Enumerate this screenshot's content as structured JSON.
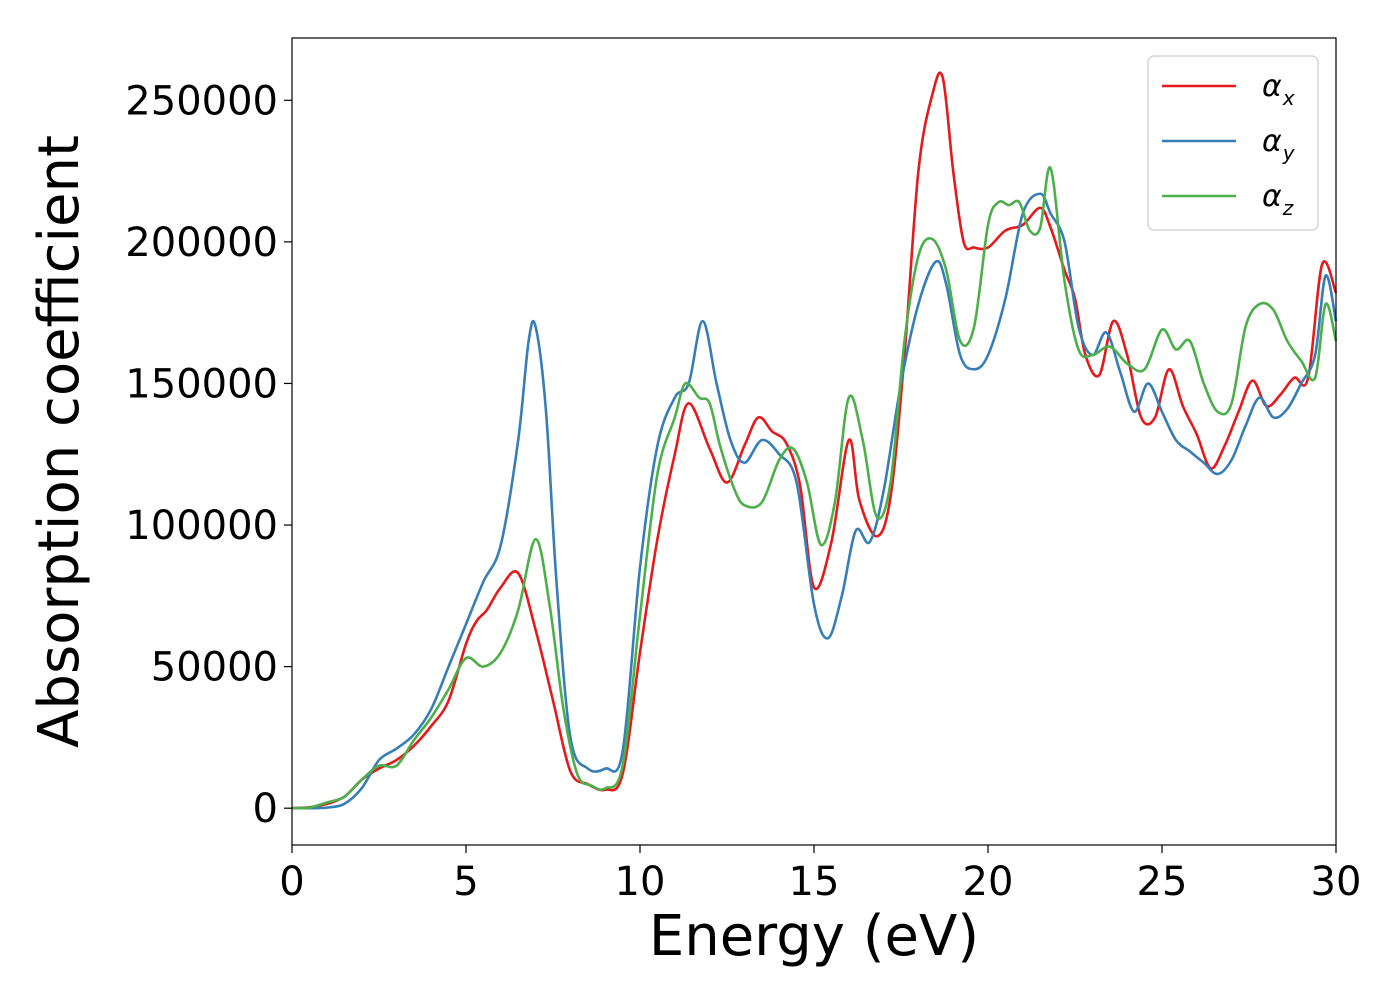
{
  "chart_data": {
    "type": "line",
    "xlabel": "Energy (eV)",
    "ylabel": "Absorption coefficient",
    "xlim": [
      0,
      30
    ],
    "ylim": [
      -13000,
      272000
    ],
    "xticks": [
      0,
      5,
      10,
      15,
      20,
      25,
      30
    ],
    "xtick_labels": [
      "0",
      "5",
      "10",
      "15",
      "20",
      "25",
      "30"
    ],
    "yticks": [
      0,
      50000,
      100000,
      150000,
      200000,
      250000
    ],
    "ytick_labels": [
      "0",
      "50000",
      "100000",
      "150000",
      "200000",
      "250000"
    ],
    "grid": false,
    "legend_position": "top-right",
    "series": [
      {
        "name": "α_x",
        "legend_base": "α",
        "legend_sub": "x",
        "color": "#e41a1c",
        "x": [
          0,
          0.5,
          1.0,
          1.5,
          2.0,
          2.5,
          3.0,
          3.5,
          4.0,
          4.5,
          5.0,
          5.3,
          5.6,
          6.0,
          6.5,
          7.0,
          7.5,
          8.0,
          8.5,
          9.0,
          9.5,
          10.0,
          10.5,
          11.0,
          11.4,
          12.0,
          12.5,
          13.0,
          13.4,
          13.8,
          14.2,
          14.6,
          15.0,
          15.5,
          16.0,
          16.3,
          16.8,
          17.2,
          17.6,
          18.0,
          18.4,
          18.7,
          19.0,
          19.3,
          19.6,
          20.0,
          20.5,
          21.0,
          21.5,
          21.8,
          22.2,
          22.5,
          22.8,
          23.2,
          23.6,
          24.0,
          24.4,
          24.8,
          25.2,
          25.6,
          26.0,
          26.4,
          26.8,
          27.2,
          27.6,
          28.0,
          28.4,
          28.8,
          29.2,
          29.6,
          30.0
        ],
        "y": [
          0,
          300,
          1500,
          4000,
          10000,
          14000,
          17000,
          22000,
          29000,
          38000,
          58000,
          66000,
          70000,
          78000,
          83000,
          63000,
          38000,
          13000,
          8500,
          6500,
          12000,
          55000,
          95000,
          125000,
          143000,
          127000,
          115000,
          128000,
          138000,
          133000,
          129000,
          114000,
          78000,
          94000,
          130000,
          109000,
          96000,
          110000,
          160000,
          225000,
          252000,
          258000,
          225000,
          200000,
          198000,
          198000,
          204000,
          206000,
          212000,
          205000,
          190000,
          180000,
          160000,
          153000,
          172000,
          160000,
          138000,
          138000,
          155000,
          142000,
          132000,
          120000,
          128000,
          140000,
          151000,
          142000,
          146000,
          152000,
          152000,
          192000,
          182000
        ]
      },
      {
        "name": "α_y",
        "legend_base": "α",
        "legend_sub": "y",
        "color": "#377eb8",
        "x": [
          0,
          0.5,
          1.0,
          1.5,
          2.0,
          2.5,
          3.0,
          3.5,
          4.0,
          4.5,
          5.0,
          5.5,
          6.0,
          6.5,
          6.8,
          7.0,
          7.3,
          7.6,
          8.0,
          8.5,
          9.0,
          9.5,
          10.0,
          10.5,
          11.0,
          11.4,
          11.8,
          12.2,
          12.6,
          13.0,
          13.5,
          14.0,
          14.5,
          15.0,
          15.4,
          15.8,
          16.2,
          16.6,
          17.0,
          17.5,
          18.0,
          18.5,
          18.8,
          19.2,
          19.6,
          20.0,
          20.5,
          21.0,
          21.5,
          21.8,
          22.2,
          22.6,
          23.0,
          23.4,
          23.8,
          24.2,
          24.6,
          25.0,
          25.4,
          25.8,
          26.2,
          26.6,
          27.0,
          27.4,
          27.8,
          28.2,
          28.6,
          29.0,
          29.4,
          29.7,
          30.0
        ],
        "y": [
          0,
          0,
          200,
          1500,
          7000,
          17000,
          21000,
          26000,
          35000,
          50000,
          65000,
          80000,
          93000,
          130000,
          165000,
          170000,
          140000,
          80000,
          25000,
          14000,
          14000,
          20000,
          85000,
          128000,
          145000,
          150000,
          172000,
          150000,
          130000,
          122000,
          130000,
          125000,
          115000,
          72000,
          60000,
          75000,
          98000,
          94000,
          112000,
          150000,
          178000,
          193000,
          185000,
          160000,
          155000,
          160000,
          180000,
          210000,
          217000,
          210000,
          200000,
          170000,
          160000,
          168000,
          154000,
          140000,
          150000,
          140000,
          130000,
          126000,
          122000,
          118000,
          123000,
          135000,
          145000,
          138000,
          141000,
          150000,
          160000,
          188000,
          172000
        ]
      },
      {
        "name": "α_z",
        "legend_base": "α",
        "legend_sub": "z",
        "color": "#4daf4a",
        "x": [
          0,
          0.5,
          1.0,
          1.5,
          2.0,
          2.5,
          3.0,
          3.5,
          4.0,
          4.5,
          5.0,
          5.5,
          6.0,
          6.5,
          7.0,
          7.4,
          7.8,
          8.2,
          8.6,
          9.0,
          9.5,
          10.0,
          10.5,
          11.0,
          11.3,
          11.7,
          12.0,
          12.3,
          12.7,
          13.0,
          13.5,
          14.0,
          14.4,
          14.8,
          15.2,
          15.6,
          16.0,
          16.4,
          16.8,
          17.2,
          17.6,
          18.0,
          18.4,
          18.8,
          19.2,
          19.6,
          20.0,
          20.3,
          20.6,
          20.9,
          21.2,
          21.5,
          21.8,
          22.2,
          22.6,
          23.0,
          23.5,
          24.0,
          24.5,
          25.0,
          25.4,
          25.8,
          26.2,
          26.6,
          27.0,
          27.4,
          27.8,
          28.2,
          28.6,
          29.0,
          29.4,
          29.7,
          30.0
        ],
        "y": [
          0,
          200,
          2000,
          4000,
          10000,
          15000,
          15000,
          24000,
          32000,
          42000,
          53000,
          50000,
          55000,
          70000,
          95000,
          72000,
          35000,
          12000,
          8000,
          7000,
          15000,
          68000,
          118000,
          138000,
          150000,
          145000,
          143000,
          128000,
          113000,
          107000,
          108000,
          123000,
          127000,
          115000,
          93000,
          108000,
          145000,
          130000,
          103000,
          115000,
          165000,
          195000,
          201000,
          190000,
          165000,
          170000,
          206000,
          214000,
          213000,
          214000,
          204000,
          205000,
          226000,
          186000,
          162000,
          160000,
          163000,
          157000,
          155000,
          169000,
          162000,
          165000,
          150000,
          140000,
          143000,
          170000,
          178000,
          176000,
          165000,
          158000,
          152000,
          178000,
          165000
        ]
      }
    ]
  }
}
